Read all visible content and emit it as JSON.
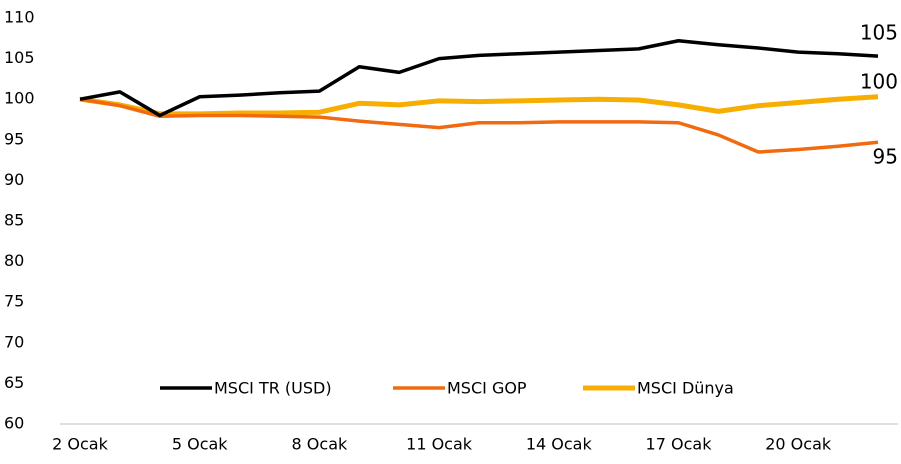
{
  "chart_data": {
    "type": "line",
    "categories": [
      "2 Ocak",
      null,
      null,
      "5 Ocak",
      null,
      null,
      "8 Ocak",
      null,
      null,
      "11 Ocak",
      null,
      null,
      "14 Ocak",
      null,
      null,
      "17 Ocak",
      null,
      null,
      "20 Ocak",
      null,
      null
    ],
    "series": [
      {
        "name": "MSCI TR (USD)",
        "color": "#000000",
        "values": [
          100,
          100.9,
          98,
          100.3,
          100.5,
          100.8,
          101,
          104,
          103.3,
          105,
          105.4,
          105.6,
          105.8,
          106,
          106.2,
          107.2,
          106.7,
          106.3,
          105.8,
          105.6,
          105.3
        ]
      },
      {
        "name": "MSCI GOP",
        "color": "#f26a10",
        "values": [
          100,
          99.2,
          97.9,
          98,
          98,
          97.9,
          97.8,
          97.3,
          96.9,
          96.5,
          97.1,
          97.1,
          97.2,
          97.2,
          97.2,
          97.1,
          95.6,
          93.5,
          93.8,
          94.2,
          94.7
        ]
      },
      {
        "name": "MSCI Dünya",
        "color": "#f7ae00",
        "values": [
          100,
          99.3,
          98.2,
          98.2,
          98.3,
          98.3,
          98.4,
          99.5,
          99.3,
          99.8,
          99.7,
          99.8,
          99.9,
          100,
          99.9,
          99.3,
          98.5,
          99.2,
          99.6,
          100,
          100.3
        ]
      }
    ],
    "annotations": [
      "105",
      "100",
      "95"
    ],
    "ylim": [
      60,
      110
    ],
    "yticks": [
      60,
      65,
      70,
      75,
      80,
      85,
      90,
      95,
      100,
      105,
      110
    ],
    "legend": "bottom",
    "grid": false
  }
}
